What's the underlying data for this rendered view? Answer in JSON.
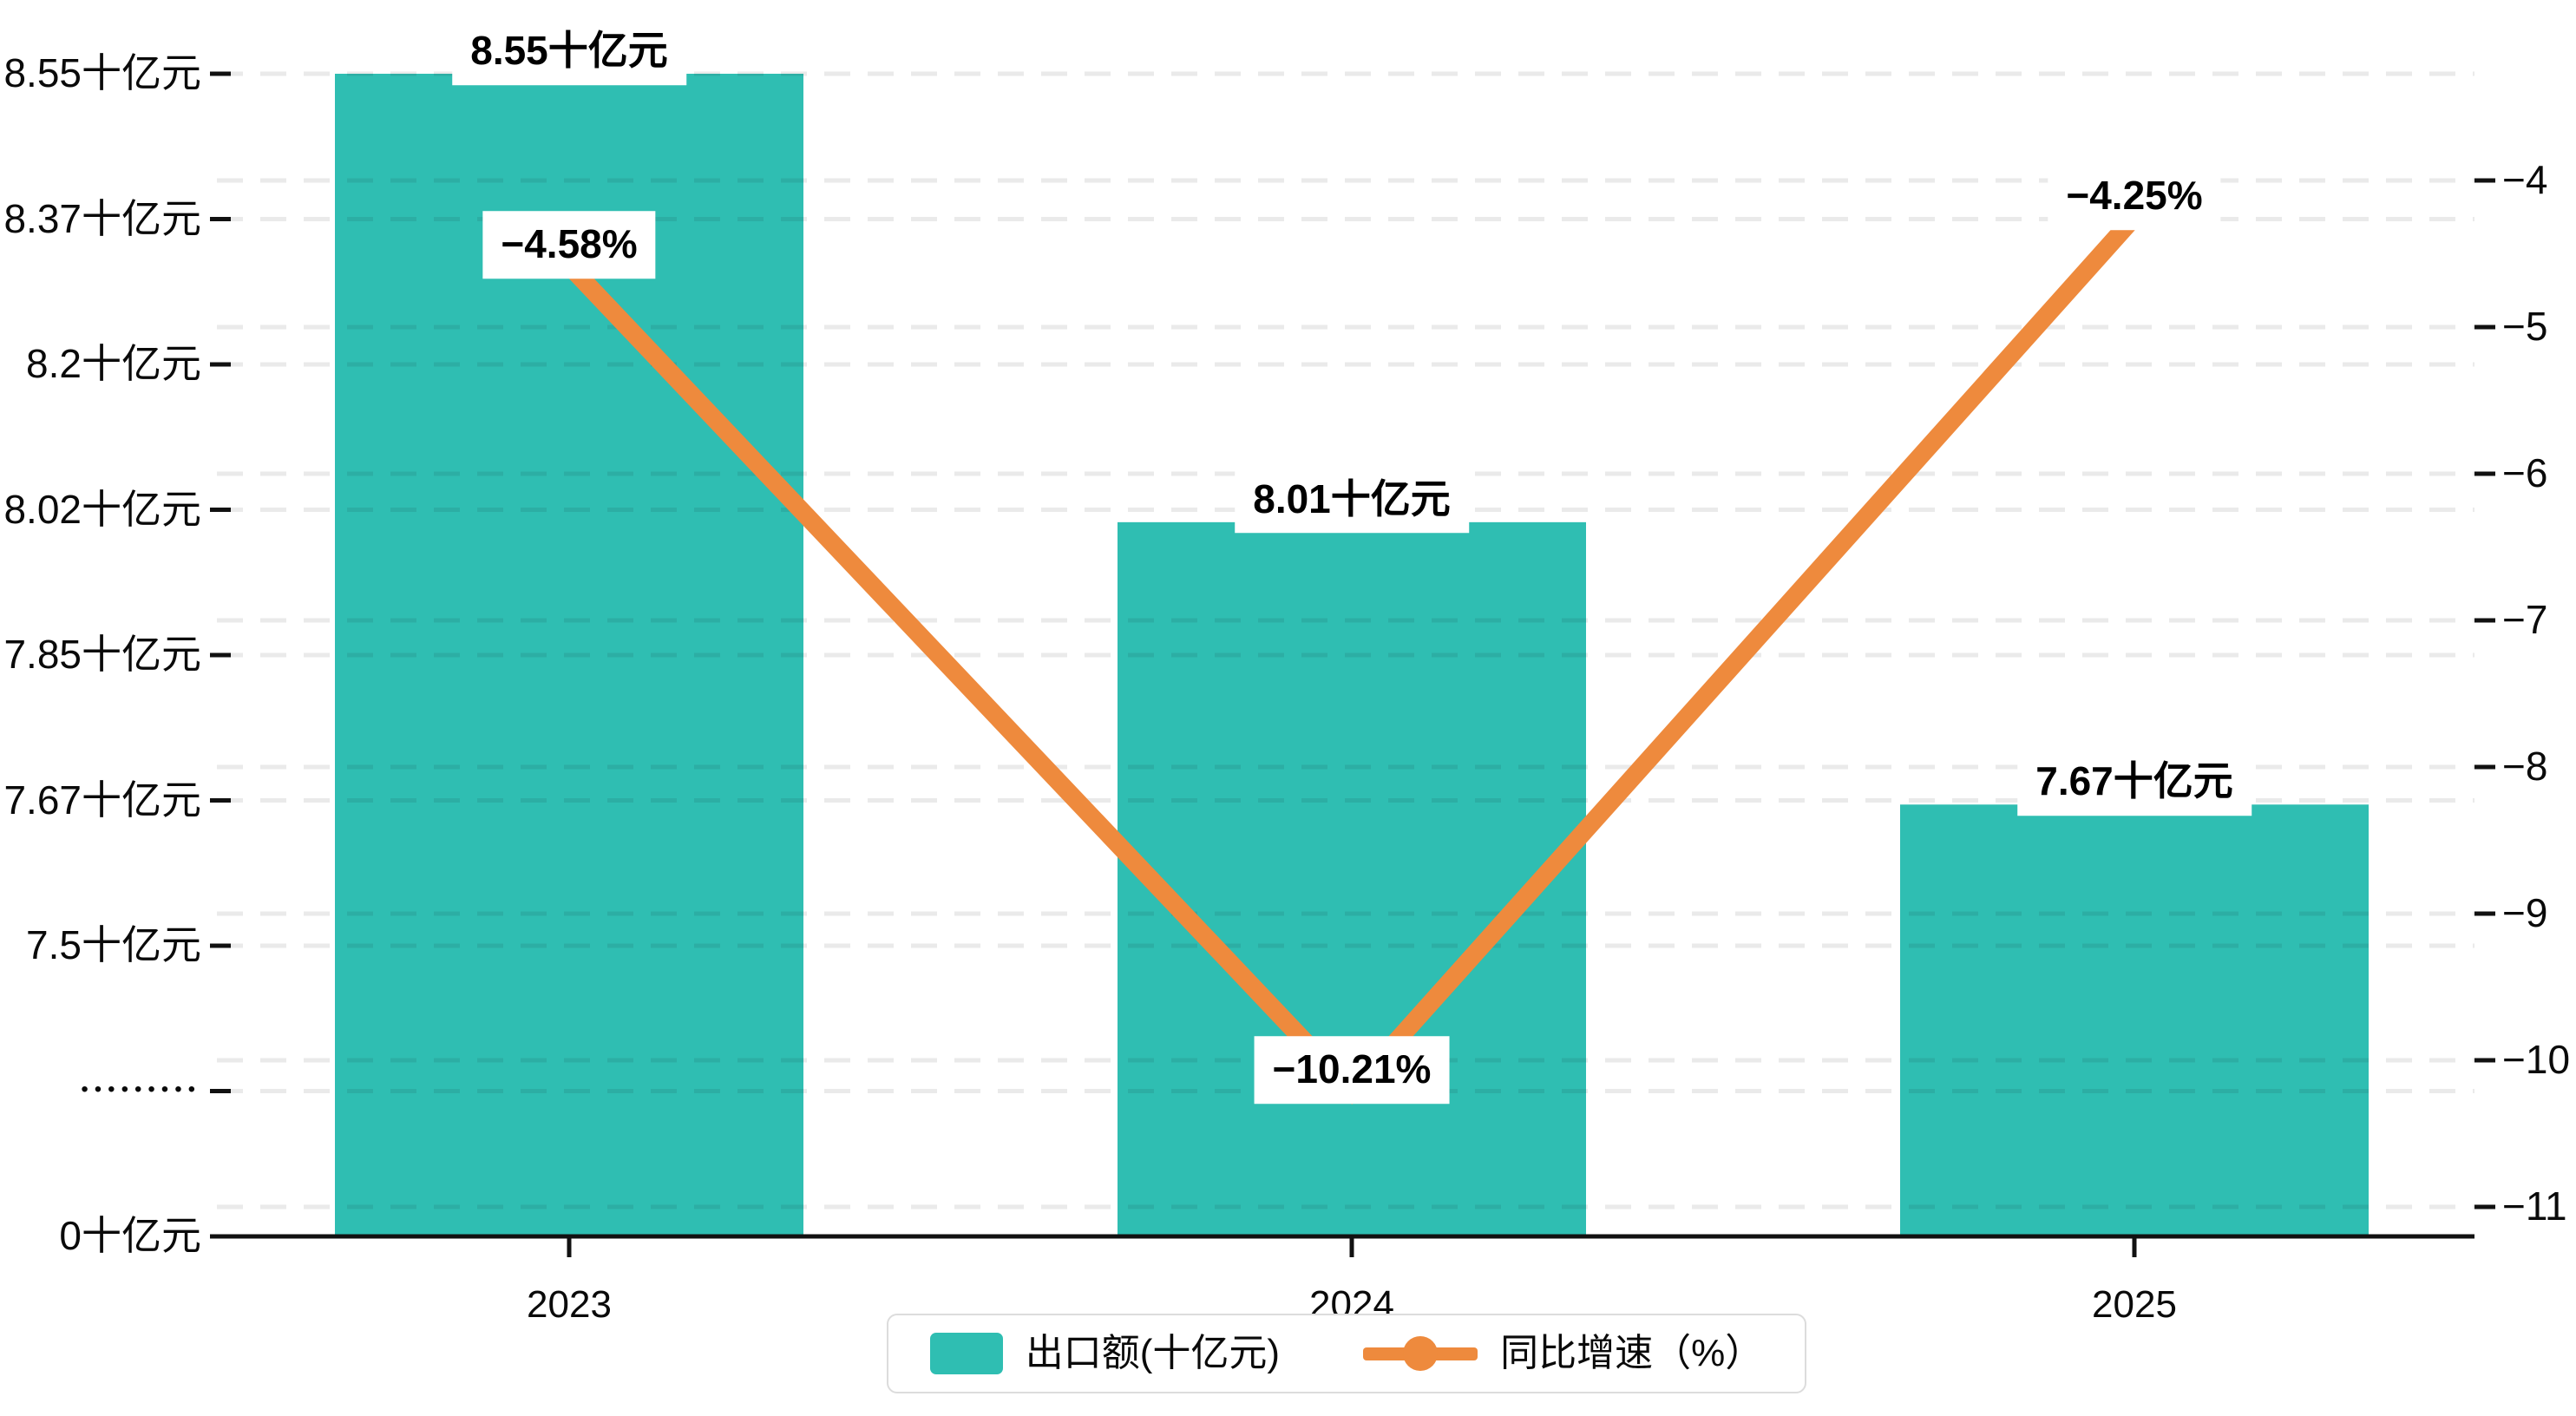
{
  "chart_data": {
    "type": "bar",
    "subtype": "combo-bar-line-dual-axis",
    "categories": [
      "2023",
      "2024",
      "2025"
    ],
    "series": [
      {
        "name": "出口额(十亿元)",
        "type": "bar",
        "color": "#2fbeb2",
        "values": [
          8.55,
          8.01,
          7.67
        ],
        "point_labels": [
          "8.55十亿元",
          "8.01十亿元",
          "7.67十亿元"
        ]
      },
      {
        "name": "同比增速（%）",
        "type": "line",
        "color": "#ee8a3d",
        "values": [
          -4.58,
          -10.21,
          -4.25
        ],
        "point_labels": [
          "−4.58%",
          "−10.21%",
          "−4.25%"
        ]
      }
    ],
    "left_axis": {
      "unit": "十亿元",
      "broken_axis": true,
      "tick_values": [
        8.55,
        8.37,
        8.2,
        8.02,
        7.85,
        7.67,
        7.5,
        null,
        0
      ],
      "tick_labels": [
        "8.55十亿元",
        "8.37十亿元",
        "8.2十亿元",
        "8.02十亿元",
        "7.85十亿元",
        "7.67十亿元",
        "7.5十亿元",
        "•••••••••",
        "0十亿元"
      ]
    },
    "right_axis": {
      "unit": "%",
      "max": -4,
      "min": -11,
      "tick_labels": [
        "−4",
        "−5",
        "−6",
        "−7",
        "−8",
        "−9",
        "−10",
        "−11"
      ]
    },
    "legend": {
      "position": "bottom",
      "items": [
        "出口额(十亿元)",
        "同比增速（%）"
      ]
    },
    "grid": {
      "horizontal_dashed": true,
      "legend_border": true
    }
  },
  "colors": {
    "background": "#ffffff",
    "bar": "#2fbeb2",
    "line": "#ee8a3d",
    "axis": "#111111",
    "gridline_rgba": "17,17,17,0.09",
    "legend_border": "#dcdcdc"
  }
}
